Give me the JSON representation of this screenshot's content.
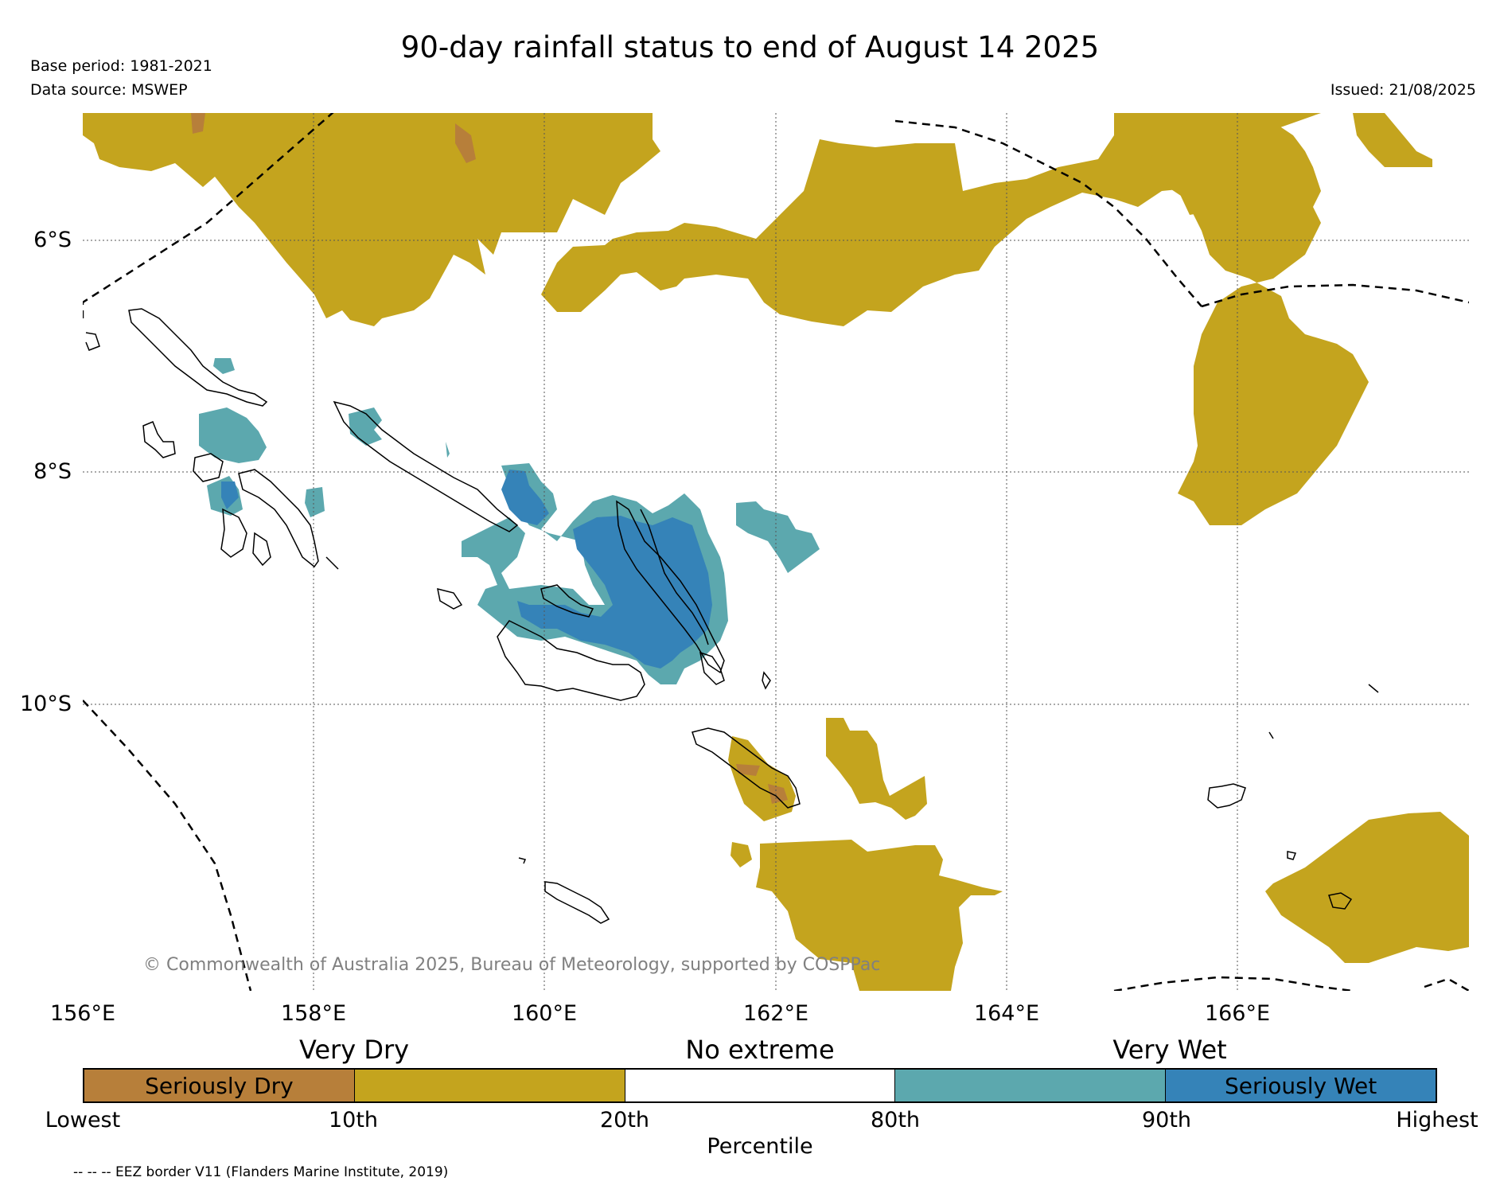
{
  "title": "90-day rainfall status to end of August 14 2025",
  "base_period": "Base period: 1981-2021",
  "data_source": "Data source: MSWEP",
  "issued": "Issued: 21/08/2025",
  "copyright": "© Commonwealth of Australia 2025, Bureau of Meteorology, supported by COSPPac",
  "map": {
    "lon_labels": [
      "156°E",
      "158°E",
      "160°E",
      "162°E",
      "164°E",
      "166°E"
    ],
    "lat_labels": [
      "6°S",
      "8°S",
      "10°S"
    ]
  },
  "legend": {
    "categories": [
      "Very Dry",
      "No extreme",
      "Very Wet"
    ],
    "segments": [
      {
        "label": "Seriously Dry",
        "color": "#b77f3a"
      },
      {
        "label": "",
        "color": "#c4a41e"
      },
      {
        "label": "",
        "color": "#ffffff"
      },
      {
        "label": "",
        "color": "#5ca8ae"
      },
      {
        "label": "Seriously Wet",
        "color": "#3583b8"
      }
    ],
    "ticks": [
      "Lowest",
      "10th",
      "20th",
      "80th",
      "90th",
      "Highest"
    ],
    "axis_label": "Percentile",
    "eez_note": "-- -- -- EEZ border V11 (Flanders Marine Institute, 2019)"
  },
  "colors": {
    "very_dry": "#c4a41e",
    "seriously_dry": "#b77f3a",
    "very_wet": "#5ca8ae",
    "seriously_wet": "#3583b8"
  }
}
